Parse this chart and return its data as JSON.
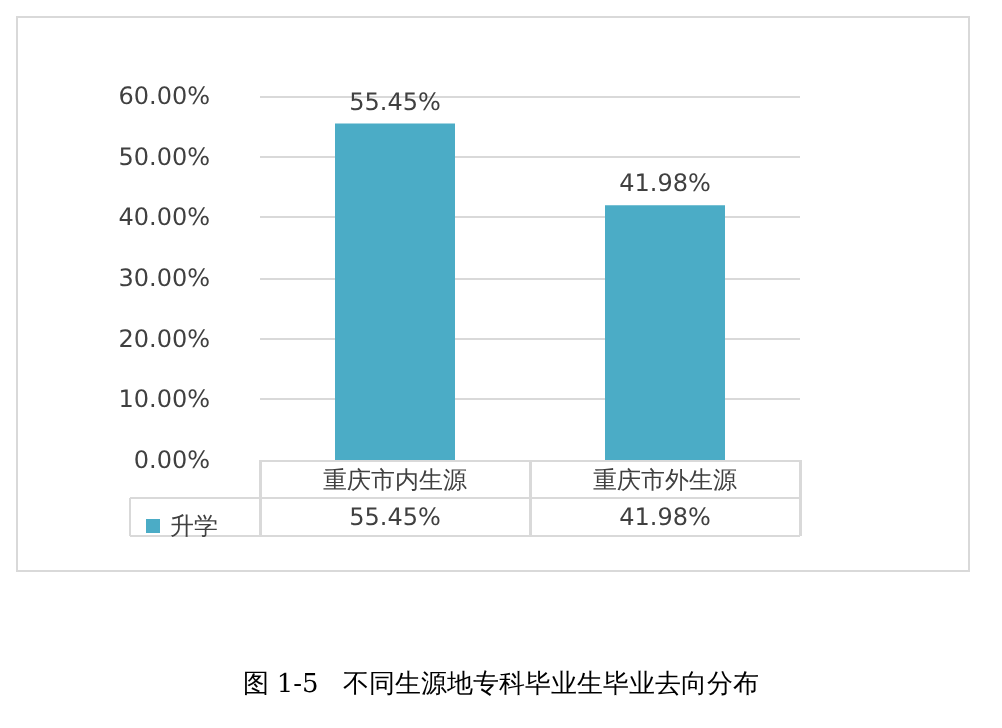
{
  "chart_data": {
    "type": "bar",
    "title": "图 1-5   不同生源地专科毕业生毕业去向分布",
    "categories": [
      "重庆市内生源",
      "重庆市外生源"
    ],
    "series": [
      {
        "name": "升学",
        "color": "#4bacc6",
        "values": [
          55.45,
          41.98
        ],
        "value_labels": [
          "55.45%",
          "41.98%"
        ]
      }
    ],
    "ylim": [
      0,
      60
    ],
    "yticks": [
      {
        "value": 0,
        "label": "0.00%"
      },
      {
        "value": 10,
        "label": "10.00%"
      },
      {
        "value": 20,
        "label": "20.00%"
      },
      {
        "value": 30,
        "label": "30.00%"
      },
      {
        "value": 40,
        "label": "40.00%"
      },
      {
        "value": 50,
        "label": "50.00%"
      },
      {
        "value": 60,
        "label": "60.00%"
      }
    ],
    "grid": "y",
    "legend": "bottom left"
  }
}
